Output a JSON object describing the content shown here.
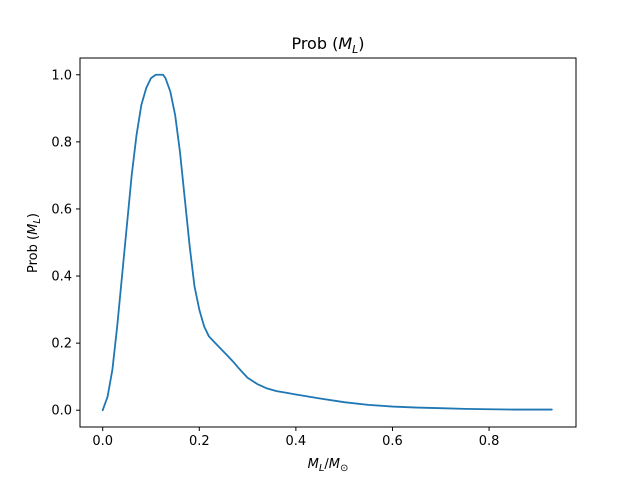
{
  "chart_data": {
    "type": "line",
    "title_prefix": "Prob (",
    "title_var": "M",
    "title_sub": "L",
    "title_suffix": ")",
    "xlabel_num": "M",
    "xlabel_num_sub": "L",
    "xlabel_slash": "/",
    "xlabel_den": "M",
    "xlabel_den_sub": "⊙",
    "ylabel_prefix": "Prob (",
    "ylabel_var": "M",
    "ylabel_sub": "L",
    "ylabel_suffix": ")",
    "xlim": [
      -0.047,
      0.98
    ],
    "ylim": [
      -0.05,
      1.05
    ],
    "xticks": [
      0.0,
      0.2,
      0.4,
      0.6,
      0.8
    ],
    "xtick_labels": [
      "0.0",
      "0.2",
      "0.4",
      "0.6",
      "0.8"
    ],
    "yticks": [
      0.0,
      0.2,
      0.4,
      0.6,
      0.8,
      1.0
    ],
    "ytick_labels": [
      "0.0",
      "0.2",
      "0.4",
      "0.6",
      "0.8",
      "1.0"
    ],
    "grid": false,
    "color": "#1f77b4",
    "series": [
      {
        "x": [
          0.0,
          0.01,
          0.02,
          0.03,
          0.04,
          0.05,
          0.06,
          0.07,
          0.08,
          0.09,
          0.1,
          0.11,
          0.12,
          0.125,
          0.13,
          0.14,
          0.15,
          0.16,
          0.17,
          0.18,
          0.19,
          0.2,
          0.21,
          0.22,
          0.23,
          0.24,
          0.25,
          0.26,
          0.27,
          0.28,
          0.29,
          0.3,
          0.32,
          0.34,
          0.36,
          0.38,
          0.4,
          0.45,
          0.5,
          0.55,
          0.6,
          0.65,
          0.7,
          0.75,
          0.8,
          0.85,
          0.9,
          0.93
        ],
        "y": [
          0.0,
          0.04,
          0.12,
          0.25,
          0.4,
          0.55,
          0.7,
          0.82,
          0.91,
          0.96,
          0.99,
          1.0,
          1.0,
          1.0,
          0.99,
          0.95,
          0.88,
          0.77,
          0.63,
          0.49,
          0.37,
          0.3,
          0.25,
          0.22,
          0.205,
          0.19,
          0.175,
          0.16,
          0.145,
          0.128,
          0.112,
          0.097,
          0.078,
          0.065,
          0.057,
          0.052,
          0.047,
          0.035,
          0.024,
          0.016,
          0.011,
          0.008,
          0.006,
          0.004,
          0.003,
          0.002,
          0.002,
          0.002
        ]
      }
    ]
  }
}
